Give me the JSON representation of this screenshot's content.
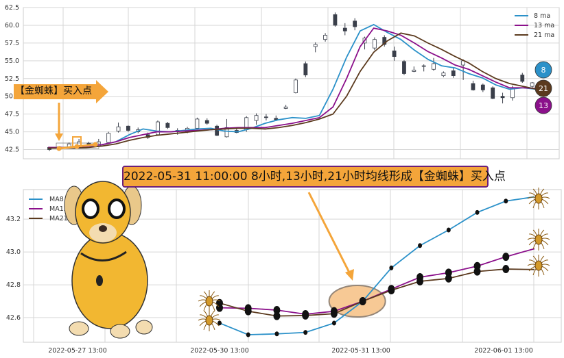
{
  "colors": {
    "ma8": "#2b91c9",
    "ma13": "#8b108b",
    "ma21": "#5b3a1e",
    "annotation": "#f4a53a",
    "title_border": "#6b1f7a"
  },
  "buy_label": "【金蜘蛛】买入点",
  "badges": [
    {
      "label": "8",
      "color": "#2b91c9"
    },
    {
      "label": "21",
      "color": "#5b3a1e"
    },
    {
      "label": "13",
      "color": "#8b108b"
    }
  ],
  "icons": [
    "golden-spider-icon",
    "spider-dog-illustration"
  ],
  "chart_data": [
    {
      "type": "candlestick",
      "ylim": [
        41.2,
        62.5
      ],
      "yticks": [
        "42.5",
        "45.0",
        "47.5",
        "50.0",
        "52.5",
        "55.0",
        "57.5",
        "60.0",
        "62.5"
      ],
      "grid": true,
      "legend_placement": "top-right",
      "legend": [
        "8 ma",
        "13 ma",
        "21 ma"
      ],
      "candles": [
        [
          42.8,
          42.5,
          42.9,
          42.3
        ],
        [
          42.6,
          42.9,
          43.0,
          42.5
        ],
        [
          42.8,
          43.3,
          43.5,
          42.7
        ],
        [
          43.1,
          43.6,
          44.0,
          43.0
        ],
        [
          43.4,
          43.2,
          43.6,
          43.0
        ],
        [
          43.0,
          43.6,
          44.0,
          42.9
        ],
        [
          43.5,
          44.8,
          45.0,
          43.4
        ],
        [
          45.1,
          45.7,
          46.3,
          44.9
        ],
        [
          45.8,
          45.2,
          45.9,
          45.0
        ],
        [
          45.0,
          45.3,
          45.6,
          44.8
        ],
        [
          44.6,
          44.2,
          44.9,
          44.0
        ],
        [
          44.6,
          46.4,
          46.6,
          44.5
        ],
        [
          46.2,
          45.6,
          46.4,
          45.4
        ],
        [
          45.2,
          45.0,
          45.5,
          44.6
        ],
        [
          45.0,
          45.5,
          45.7,
          44.8
        ],
        [
          45.5,
          46.8,
          47.0,
          45.3
        ],
        [
          46.6,
          46.2,
          46.9,
          46.0
        ],
        [
          45.8,
          44.5,
          46.0,
          44.4
        ],
        [
          44.3,
          45.6,
          46.8,
          44.2
        ],
        [
          45.2,
          44.9,
          45.5,
          44.8
        ],
        [
          45.3,
          47.0,
          47.2,
          45.0
        ],
        [
          46.6,
          47.3,
          47.6,
          46.0
        ],
        [
          47.1,
          47.0,
          47.5,
          46.6
        ],
        [
          46.9,
          46.7,
          47.3,
          46.5
        ],
        [
          48.3,
          48.5,
          48.8,
          48.2
        ],
        [
          50.5,
          52.3,
          52.5,
          50.4
        ],
        [
          54.6,
          53.0,
          54.9,
          52.7
        ],
        [
          57.0,
          57.3,
          57.6,
          56.2
        ],
        [
          58.0,
          58.6,
          58.9,
          57.7
        ],
        [
          61.5,
          60.0,
          61.8,
          59.8
        ],
        [
          59.6,
          59.2,
          60.3,
          58.6
        ],
        [
          60.6,
          59.8,
          61.0,
          59.3
        ],
        [
          57.5,
          58.2,
          58.4,
          56.6
        ],
        [
          56.8,
          58.0,
          58.3,
          56.5
        ],
        [
          58.3,
          57.3,
          58.6,
          57.0
        ],
        [
          56.4,
          55.6,
          57.0,
          55.0
        ],
        [
          54.9,
          53.2,
          55.1,
          53.0
        ],
        [
          53.5,
          53.7,
          54.2,
          53.4
        ],
        [
          54.2,
          54.3,
          54.5,
          53.5
        ],
        [
          53.8,
          54.6,
          55.4,
          53.6
        ],
        [
          52.9,
          53.3,
          53.5,
          52.7
        ],
        [
          53.6,
          52.9,
          54.0,
          52.6
        ],
        [
          54.4,
          55.0,
          55.2,
          52.3
        ],
        [
          51.8,
          50.9,
          52.2,
          50.8
        ],
        [
          51.6,
          50.9,
          51.8,
          50.6
        ],
        [
          51.2,
          49.7,
          51.4,
          49.6
        ],
        [
          50.0,
          49.8,
          50.5,
          49.0
        ],
        [
          49.8,
          51.2,
          51.5,
          49.4
        ],
        [
          53.0,
          52.1,
          53.3,
          51.9
        ],
        [
          51.4,
          51.9,
          52.0,
          51.1
        ],
        [
          51.6,
          51.5,
          52.0,
          51.2
        ]
      ],
      "series": [
        {
          "name": "8 ma",
          "values": [
            42.7,
            42.8,
            42.9,
            43.1,
            43.2,
            43.6,
            44.6,
            45.4,
            45.1,
            45.0,
            45.2,
            45.4,
            45.5,
            45.1,
            45.0,
            45.5,
            46.2,
            46.7,
            47.0,
            46.9,
            47.3,
            51.0,
            55.5,
            59.2,
            60.1,
            59.0,
            58.0,
            56.5,
            55.2,
            54.3,
            54.0,
            53.2,
            52.6,
            51.6,
            51.0,
            51.2,
            51.0
          ]
        },
        {
          "name": "13 ma",
          "values": [
            42.8,
            42.8,
            42.8,
            43.0,
            43.2,
            43.6,
            44.2,
            44.6,
            45.0,
            45.0,
            45.1,
            45.2,
            45.3,
            45.5,
            45.6,
            45.6,
            45.6,
            45.9,
            46.2,
            46.6,
            47.0,
            48.5,
            52.5,
            57.0,
            59.6,
            59.2,
            58.6,
            57.5,
            56.3,
            55.4,
            54.4,
            53.8,
            52.9,
            52.0,
            51.2,
            51.2,
            51.1
          ]
        },
        {
          "name": "21 ma",
          "values": [
            42.7,
            42.7,
            42.7,
            42.8,
            43.0,
            43.3,
            43.8,
            44.2,
            44.5,
            44.7,
            44.9,
            45.1,
            45.3,
            45.4,
            45.5,
            45.5,
            45.4,
            45.6,
            45.9,
            46.3,
            46.8,
            47.5,
            50.0,
            53.5,
            56.2,
            57.8,
            58.9,
            58.5,
            57.5,
            56.6,
            55.6,
            54.7,
            53.5,
            52.5,
            51.8,
            51.4,
            51.0
          ]
        }
      ]
    },
    {
      "type": "line",
      "title": "2022-05-31 11:00:00 8小时,13小时,21小时均线形成【金蜘蛛】买入点",
      "ylim": [
        42.45,
        43.38
      ],
      "yticks": [
        "42.6",
        "42.8",
        "43.0",
        "43.2"
      ],
      "xticks": [
        "2022-05-27 13:00",
        "2022-05-30 13:00",
        "2022-05-31 13:00",
        "2022-06-01 13:00"
      ],
      "grid": true,
      "legend_placement": "top-left",
      "series": [
        {
          "name": "MA8",
          "values": [
            42.567,
            42.496,
            42.501,
            42.51,
            42.567,
            42.7,
            42.903,
            43.039,
            43.134,
            43.241,
            43.31,
            43.336
          ]
        },
        {
          "name": "MA13",
          "values": [
            42.66,
            42.657,
            42.646,
            42.621,
            42.639,
            42.7,
            42.774,
            42.846,
            42.874,
            42.914,
            42.971,
            43.02
          ]
        },
        {
          "name": "MA21",
          "values": [
            42.689,
            42.639,
            42.61,
            42.613,
            42.624,
            42.7,
            42.767,
            42.821,
            42.839,
            42.881,
            42.896,
            42.893
          ]
        }
      ],
      "highlight_index": 5
    }
  ]
}
